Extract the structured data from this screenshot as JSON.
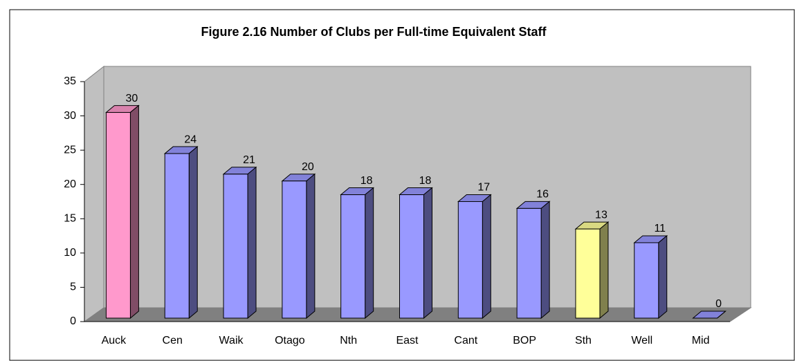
{
  "chart_data": {
    "type": "bar3d",
    "title": "Figure 2.16 Number of Clubs per Full-time Equivalent Staff",
    "categories": [
      "Auck",
      "Cen",
      "Waik",
      "Otago",
      "Nth",
      "East",
      "Cant",
      "BOP",
      "Sth",
      "Well",
      "Mid"
    ],
    "values": [
      30,
      24,
      21,
      20,
      18,
      18,
      17,
      16,
      13,
      11,
      0
    ],
    "colors": [
      "#ff99cc",
      "#9999ff",
      "#9999ff",
      "#9999ff",
      "#9999ff",
      "#9999ff",
      "#9999ff",
      "#9999ff",
      "#ffff99",
      "#9999ff",
      "#9999ff"
    ],
    "ylim": [
      0,
      35
    ],
    "yticks": [
      0,
      5,
      10,
      15,
      20,
      25,
      30,
      35
    ]
  }
}
